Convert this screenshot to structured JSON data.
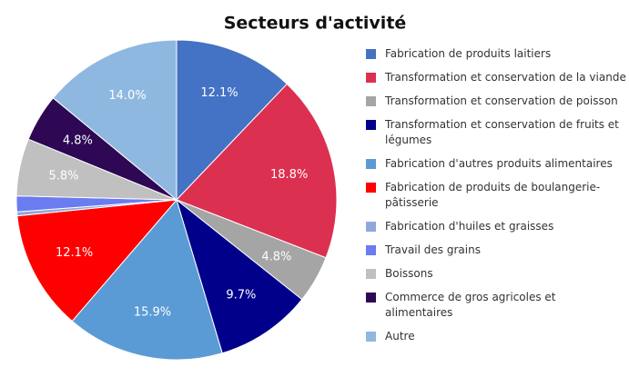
{
  "chart_data": {
    "type": "pie",
    "title": "Secteurs d'activité",
    "categories": [
      "Fabrication de produits laitiers",
      "Transformation et conservation de la viande",
      "Transformation et conservation de poisson",
      "Transformation et conservation de fruits et légumes",
      "Fabrication d'autres produits alimentaires",
      "Fabrication de produits de boulangerie-pâtisserie",
      "Fabrication d'huiles et graisses",
      "Travail des grains",
      "Boissons",
      "Commerce de gros agricoles et alimentaires",
      "Autre"
    ],
    "values": [
      12.1,
      18.8,
      4.8,
      9.7,
      15.9,
      12.1,
      0.4,
      1.6,
      5.8,
      4.8,
      14.0
    ],
    "value_labels": [
      "12.1%",
      "18.8%",
      "4.8%",
      "9.7%",
      "15.9%",
      "12.1%",
      null,
      null,
      "5.8%",
      "4.8%",
      "14.0%"
    ],
    "colors": [
      "#4472c4",
      "#dc3050",
      "#a5a5a5",
      "#00008b",
      "#5b9bd5",
      "#ff0000",
      "#8fa8dc",
      "#6b7bf0",
      "#c0c0c0",
      "#2e0854",
      "#8fb8e0"
    ],
    "legend": "right"
  }
}
